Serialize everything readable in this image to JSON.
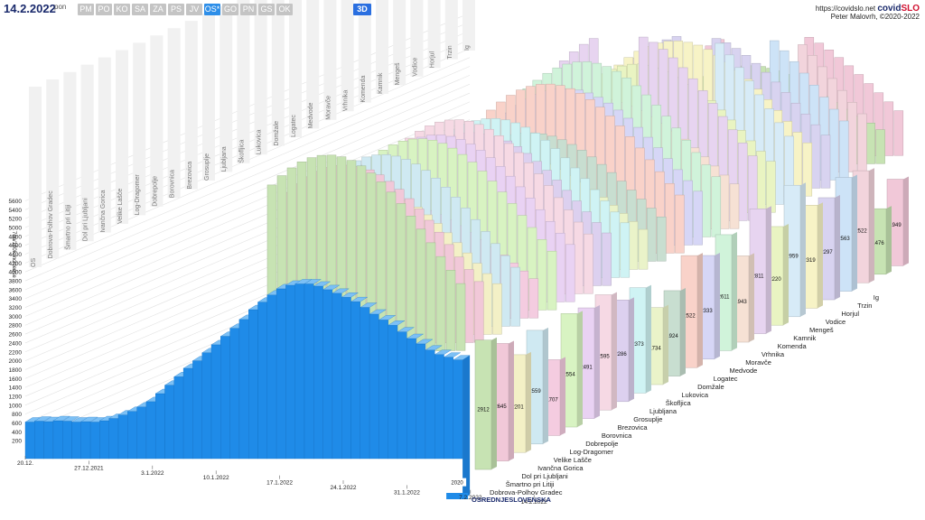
{
  "header": {
    "date": "14.2.2022",
    "day": "pon",
    "regions": [
      "PM",
      "PO",
      "KO",
      "SA",
      "ZA",
      "PS",
      "JV",
      "OS*",
      "GO",
      "PN",
      "GS",
      "OK"
    ],
    "active_region": "OS*",
    "view_3d": "3D",
    "site_url": "https://covidslo.net",
    "site_brand_a": "covid",
    "site_brand_b": "SLO",
    "author": "Peter Malovrh, ©2020-2022"
  },
  "colors": {
    "main": "#1f8be8",
    "palette": [
      "#c7e3b3",
      "#f1c8d8",
      "#f3f0c6",
      "#cfe9f2",
      "#f4cce0",
      "#d8f3c2",
      "#e9d2f3",
      "#f6d9e4",
      "#dcd0ef",
      "#cff3f4",
      "#eaf3c9",
      "#c8ded0",
      "#f9d2c9",
      "#d6d6f6",
      "#d0f3da",
      "#f6e1d4",
      "#e7d4f0",
      "#e9f4c2",
      "#d7ebf7",
      "#f7f3c6",
      "#d8d3f0",
      "#cde3f7",
      "#f2d4dc"
    ]
  },
  "chart_data": {
    "type": "bar",
    "title": "",
    "ylabel": "7dn/100k incidence",
    "ylim": [
      0,
      5600
    ],
    "yticks": [
      200,
      400,
      600,
      800,
      1000,
      1200,
      1400,
      1600,
      1800,
      2000,
      2200,
      2400,
      2600,
      2800,
      3000,
      3200,
      3400,
      3600,
      3800,
      4000,
      4200,
      4400,
      4600,
      4800,
      5000,
      5200,
      5400,
      5600
    ],
    "date_labels": [
      "20.12.",
      "27.12.2021",
      "3.1.2022",
      "10.1.2022",
      "17.1.2022",
      "24.1.2022",
      "31.1.2022",
      "7.2.2022",
      "14.2.2022"
    ],
    "grid": true,
    "front_label": "OSREDNJESLOVENSKA",
    "front_series": [
      620,
      640,
      630,
      650,
      640,
      620,
      630,
      620,
      650,
      700,
      780,
      860,
      960,
      1080,
      1260,
      1450,
      1640,
      1830,
      2000,
      2180,
      2360,
      2550,
      2730,
      2930,
      3150,
      3320,
      3480,
      3620,
      3700,
      3730,
      3730,
      3680,
      3600,
      3520,
      3430,
      3330,
      3200,
      3050,
      2920,
      2800,
      2650,
      2500,
      2380,
      2240,
      2140,
      2080,
      2020
    ],
    "front_value": "2020",
    "series": [
      {
        "name": "Dobrova-Polhov Gradec",
        "value": 2912
      },
      {
        "name": "Šmartno pri Litiji",
        "value": 2645
      },
      {
        "name": "Dol pri Ljubljani",
        "value": 2201
      },
      {
        "name": "Ivančna Gorica",
        "value": 2559
      },
      {
        "name": "Velike Lašče",
        "value": 1707
      },
      {
        "name": "Log-Dragomer",
        "value": 2554
      },
      {
        "name": "Dobrepolje",
        "value": 2491
      },
      {
        "name": "Borovnica",
        "value": 2595
      },
      {
        "name": "Brezovica",
        "value": 2286
      },
      {
        "name": "Grosuplje",
        "value": 2373
      },
      {
        "name": "Ljubljana",
        "value": 1734
      },
      {
        "name": "Škofljica",
        "value": 1924
      },
      {
        "name": "Lukovica",
        "value": 2522
      },
      {
        "name": "Domžale",
        "value": 2333
      },
      {
        "name": "Logatec",
        "value": 2611
      },
      {
        "name": "Medvode",
        "value": 1943
      },
      {
        "name": "Moravče",
        "value": 2811
      },
      {
        "name": "Vrhnika",
        "value": 2220
      },
      {
        "name": "Komenda",
        "value": 2959
      },
      {
        "name": "Kamnik",
        "value": 2319
      },
      {
        "name": "Mengeš",
        "value": 2297
      },
      {
        "name": "Vodice",
        "value": 2563
      },
      {
        "name": "Horjul",
        "value": 2522
      },
      {
        "name": "Trzin",
        "value": 1476
      },
      {
        "name": "Ig",
        "value": 1949
      }
    ],
    "top_labels": [
      "OS",
      "Dobrova-Polhov Gradec",
      "Šmartno pri Litiji",
      "Dol pri Ljubljani",
      "Ivančna Gorica",
      "Velike Lašče",
      "Log-Dragomer",
      "Dobrepolje",
      "Borovnica",
      "Brezovica",
      "Grosuplje",
      "Ljubljana",
      "Škofljica",
      "Lukovica",
      "Domžale",
      "Logatec",
      "Medvode",
      "Moravče",
      "Vrhnika",
      "Komenda",
      "Kamnik",
      "Mengeš",
      "Vodice",
      "Horjul",
      "Trzin",
      "Ig"
    ]
  }
}
